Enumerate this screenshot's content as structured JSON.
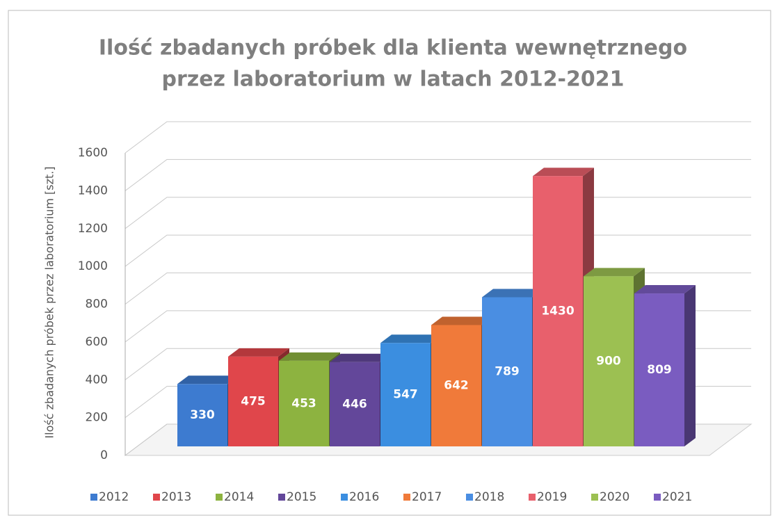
{
  "chart_data": {
    "type": "bar3d",
    "title": [
      "Ilość zbadanych próbek dla klienta wewnętrznego",
      "przez laboratorium w latach 2012-2021"
    ],
    "y_label": "Ilość zbadanych próbek przez laboratorium [szt.]",
    "ylim": [
      0,
      1600
    ],
    "yticks": [
      0,
      200,
      400,
      600,
      800,
      1000,
      1200,
      1400,
      1600
    ],
    "grid": true,
    "legend": "bottom",
    "series": [
      {
        "name": "2012",
        "color": "#3d7bd0",
        "values": [
          330
        ]
      },
      {
        "name": "2013",
        "color": "#e0464b",
        "values": [
          475
        ]
      },
      {
        "name": "2014",
        "color": "#8db340",
        "values": [
          453
        ]
      },
      {
        "name": "2015",
        "color": "#63479a",
        "values": [
          446
        ]
      },
      {
        "name": "2016",
        "color": "#3b8ee0",
        "values": [
          547
        ]
      },
      {
        "name": "2017",
        "color": "#f07a3a",
        "values": [
          642
        ]
      },
      {
        "name": "2018",
        "color": "#4a8ee2",
        "values": [
          789
        ]
      },
      {
        "name": "2019",
        "color": "#e8606c",
        "values": [
          1430
        ]
      },
      {
        "name": "2020",
        "color": "#9cc052",
        "values": [
          900
        ]
      },
      {
        "name": "2021",
        "color": "#7a5cc0",
        "values": [
          809
        ]
      }
    ]
  }
}
